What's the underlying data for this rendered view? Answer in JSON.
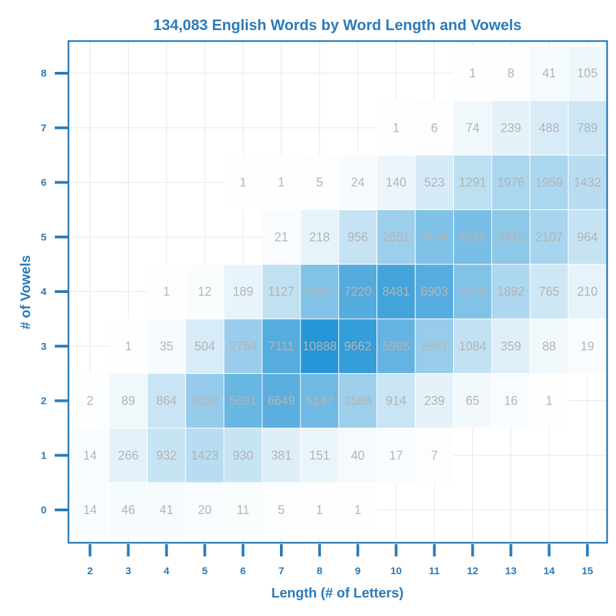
{
  "chart_data": {
    "type": "heatmap",
    "title": "134,083 English Words by Word Length and Vowels",
    "xlabel": "Length (# of Letters)",
    "ylabel": "# of Vowels",
    "x": [
      2,
      3,
      4,
      5,
      6,
      7,
      8,
      9,
      10,
      11,
      12,
      13,
      14,
      15
    ],
    "y": [
      0,
      1,
      2,
      3,
      4,
      5,
      6,
      7,
      8
    ],
    "xlim": [
      1.5,
      15.5
    ],
    "ylim": [
      -0.6,
      8.4
    ],
    "grid": true,
    "colors": {
      "axis": "#2b7bb9",
      "grid": "#e6e6e6",
      "cell_label": "#b4b4b4",
      "scale_low": "#ffffff",
      "scale_high": "#2796d6"
    },
    "cells": [
      {
        "length": 2,
        "vowels": 0,
        "count": 14
      },
      {
        "length": 3,
        "vowels": 0,
        "count": 46
      },
      {
        "length": 4,
        "vowels": 0,
        "count": 41
      },
      {
        "length": 5,
        "vowels": 0,
        "count": 20
      },
      {
        "length": 6,
        "vowels": 0,
        "count": 11
      },
      {
        "length": 7,
        "vowels": 0,
        "count": 5
      },
      {
        "length": 8,
        "vowels": 0,
        "count": 1
      },
      {
        "length": 9,
        "vowels": 0,
        "count": 1
      },
      {
        "length": 2,
        "vowels": 1,
        "count": 14
      },
      {
        "length": 3,
        "vowels": 1,
        "count": 266
      },
      {
        "length": 4,
        "vowels": 1,
        "count": 932
      },
      {
        "length": 5,
        "vowels": 1,
        "count": 1423
      },
      {
        "length": 6,
        "vowels": 1,
        "count": 930
      },
      {
        "length": 7,
        "vowels": 1,
        "count": 381
      },
      {
        "length": 8,
        "vowels": 1,
        "count": 151
      },
      {
        "length": 9,
        "vowels": 1,
        "count": 40
      },
      {
        "length": 10,
        "vowels": 1,
        "count": 17
      },
      {
        "length": 11,
        "vowels": 1,
        "count": 7
      },
      {
        "length": 2,
        "vowels": 2,
        "count": 2
      },
      {
        "length": 3,
        "vowels": 2,
        "count": 89
      },
      {
        "length": 4,
        "vowels": 2,
        "count": 864
      },
      {
        "length": 5,
        "vowels": 2,
        "count": 3058
      },
      {
        "length": 6,
        "vowels": 2,
        "count": 5691
      },
      {
        "length": 7,
        "vowels": 2,
        "count": 6649
      },
      {
        "length": 8,
        "vowels": 2,
        "count": 5147
      },
      {
        "length": 9,
        "vowels": 2,
        "count": 2586
      },
      {
        "length": 10,
        "vowels": 2,
        "count": 914
      },
      {
        "length": 11,
        "vowels": 2,
        "count": 239
      },
      {
        "length": 12,
        "vowels": 2,
        "count": 65
      },
      {
        "length": 13,
        "vowels": 2,
        "count": 16
      },
      {
        "length": 14,
        "vowels": 2,
        "count": 1
      },
      {
        "length": 3,
        "vowels": 3,
        "count": 1
      },
      {
        "length": 4,
        "vowels": 3,
        "count": 35
      },
      {
        "length": 5,
        "vowels": 3,
        "count": 504
      },
      {
        "length": 6,
        "vowels": 3,
        "count": 2754
      },
      {
        "length": 7,
        "vowels": 3,
        "count": 7111
      },
      {
        "length": 8,
        "vowels": 3,
        "count": 10888
      },
      {
        "length": 9,
        "vowels": 3,
        "count": 9662
      },
      {
        "length": 10,
        "vowels": 3,
        "count": 5986
      },
      {
        "length": 11,
        "vowels": 3,
        "count": 2867
      },
      {
        "length": 12,
        "vowels": 3,
        "count": 1084
      },
      {
        "length": 13,
        "vowels": 3,
        "count": 359
      },
      {
        "length": 14,
        "vowels": 3,
        "count": 88
      },
      {
        "length": 15,
        "vowels": 3,
        "count": 19
      },
      {
        "length": 4,
        "vowels": 4,
        "count": 1
      },
      {
        "length": 5,
        "vowels": 4,
        "count": 12
      },
      {
        "length": 6,
        "vowels": 4,
        "count": 189
      },
      {
        "length": 7,
        "vowels": 4,
        "count": 1127
      },
      {
        "length": 8,
        "vowels": 4,
        "count": 4102
      },
      {
        "length": 9,
        "vowels": 4,
        "count": 7220
      },
      {
        "length": 10,
        "vowels": 4,
        "count": 8481
      },
      {
        "length": 11,
        "vowels": 4,
        "count": 6903
      },
      {
        "length": 12,
        "vowels": 4,
        "count": 4078
      },
      {
        "length": 13,
        "vowels": 4,
        "count": 1892
      },
      {
        "length": 14,
        "vowels": 4,
        "count": 765
      },
      {
        "length": 15,
        "vowels": 4,
        "count": 210
      },
      {
        "length": 7,
        "vowels": 5,
        "count": 21
      },
      {
        "length": 8,
        "vowels": 5,
        "count": 218
      },
      {
        "length": 9,
        "vowels": 5,
        "count": 956
      },
      {
        "length": 10,
        "vowels": 5,
        "count": 2651
      },
      {
        "length": 11,
        "vowels": 5,
        "count": 4144
      },
      {
        "length": 12,
        "vowels": 5,
        "count": 4546
      },
      {
        "length": 13,
        "vowels": 5,
        "count": 3410
      },
      {
        "length": 14,
        "vowels": 5,
        "count": 2107
      },
      {
        "length": 15,
        "vowels": 5,
        "count": 964
      },
      {
        "length": 6,
        "vowels": 6,
        "count": 1
      },
      {
        "length": 7,
        "vowels": 6,
        "count": 1
      },
      {
        "length": 8,
        "vowels": 6,
        "count": 5
      },
      {
        "length": 9,
        "vowels": 6,
        "count": 24
      },
      {
        "length": 10,
        "vowels": 6,
        "count": 140
      },
      {
        "length": 11,
        "vowels": 6,
        "count": 523
      },
      {
        "length": 12,
        "vowels": 6,
        "count": 1291
      },
      {
        "length": 13,
        "vowels": 6,
        "count": 1976
      },
      {
        "length": 14,
        "vowels": 6,
        "count": 1959
      },
      {
        "length": 15,
        "vowels": 6,
        "count": 1432
      },
      {
        "length": 10,
        "vowels": 7,
        "count": 1
      },
      {
        "length": 11,
        "vowels": 7,
        "count": 6
      },
      {
        "length": 12,
        "vowels": 7,
        "count": 74
      },
      {
        "length": 13,
        "vowels": 7,
        "count": 239
      },
      {
        "length": 14,
        "vowels": 7,
        "count": 488
      },
      {
        "length": 15,
        "vowels": 7,
        "count": 789
      },
      {
        "length": 12,
        "vowels": 8,
        "count": 1
      },
      {
        "length": 13,
        "vowels": 8,
        "count": 8
      },
      {
        "length": 14,
        "vowels": 8,
        "count": 41
      },
      {
        "length": 15,
        "vowels": 8,
        "count": 105
      }
    ]
  }
}
